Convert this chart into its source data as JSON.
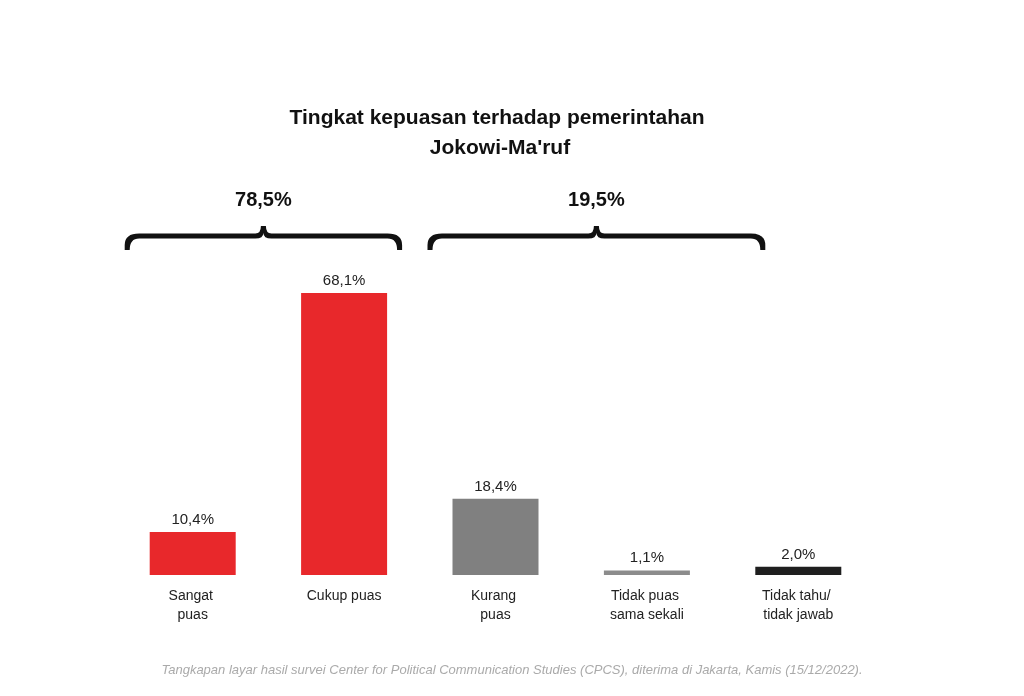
{
  "chart_data": {
    "type": "bar",
    "title": "Tingkat kepuasan terhadap pemerintahan Jokowi-Ma'ruf",
    "categories": [
      "Sangat puas",
      "Cukup puas",
      "Kurang puas",
      "Tidak puas sama sekali",
      "Tidak tahu/ tidak jawab"
    ],
    "values": [
      10.4,
      68.1,
      18.4,
      1.1,
      2.0
    ],
    "colors": [
      "#e8282b",
      "#e8282b",
      "#808080",
      "#8c8c8c",
      "#1f1f1f"
    ],
    "value_labels": [
      "10,4%",
      "68,1%",
      "18,4%",
      "1,1%",
      "2,0%"
    ],
    "annotations": [
      "78,5%",
      "19,5%",
      "Tangkapan layar hasil survei Center for Political Communication Studies (CPCS), diterima di Jakarta, Kamis (15/12/2022)."
    ],
    "grid": false
  }
}
